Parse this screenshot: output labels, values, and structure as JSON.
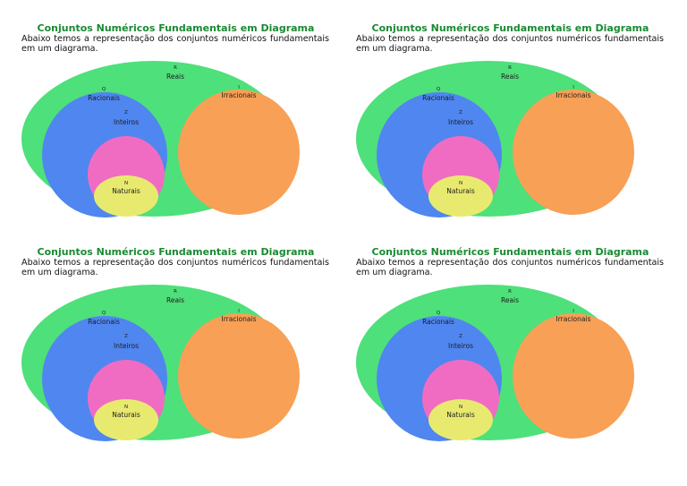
{
  "panels": [
    {
      "title": "Conjuntos Numéricos Fundamentais em Diagrama",
      "description": "Abaixo temos a representação dos conjuntos numéricos fundamentais em um diagrama.",
      "diagram": {
        "reais": {
          "symbol": "R",
          "label": "Reais"
        },
        "irracionais": {
          "symbol": "I",
          "label": "Irracionais"
        },
        "racionais": {
          "symbol": "Q",
          "label": "Racionais"
        },
        "inteiros": {
          "symbol": "Z",
          "label": "Inteiros"
        },
        "naturais": {
          "symbol": "N",
          "label": "Naturais"
        }
      }
    },
    {
      "title": "Conjuntos Numéricos Fundamentais em Diagrama",
      "description": "Abaixo temos a representação dos conjuntos numéricos fundamentais em um diagrama.",
      "diagram": {
        "reais": {
          "symbol": "R",
          "label": "Reais"
        },
        "irracionais": {
          "symbol": "I",
          "label": "Irracionais"
        },
        "racionais": {
          "symbol": "Q",
          "label": "Racionais"
        },
        "inteiros": {
          "symbol": "Z",
          "label": "Inteiros"
        },
        "naturais": {
          "symbol": "N",
          "label": "Naturais"
        }
      }
    },
    {
      "title": "Conjuntos Numéricos Fundamentais em Diagrama",
      "description": "Abaixo temos a representação dos conjuntos numéricos fundamentais em um diagrama.",
      "diagram": {
        "reais": {
          "symbol": "R",
          "label": "Reais"
        },
        "irracionais": {
          "symbol": "I",
          "label": "Irracionais"
        },
        "racionais": {
          "symbol": "Q",
          "label": "Racionais"
        },
        "inteiros": {
          "symbol": "Z",
          "label": "Inteiros"
        },
        "naturais": {
          "symbol": "N",
          "label": "Naturais"
        }
      }
    },
    {
      "title": "Conjuntos Numéricos Fundamentais em Diagrama",
      "description": "Abaixo temos a representação dos conjuntos numéricos fundamentais em um diagrama.",
      "diagram": {
        "reais": {
          "symbol": "R",
          "label": "Reais"
        },
        "irracionais": {
          "symbol": "I",
          "label": "Irracionais"
        },
        "racionais": {
          "symbol": "Q",
          "label": "Racionais"
        },
        "inteiros": {
          "symbol": "Z",
          "label": "Inteiros"
        },
        "naturais": {
          "symbol": "N",
          "label": "Naturais"
        }
      }
    }
  ],
  "colors": {
    "title": "#1a8a32",
    "reais": "#4ee07a",
    "irracionais": "#f7a056",
    "racionais": "#4f86f0",
    "inteiros": "#f06cc2",
    "naturais": "#e8ea70"
  }
}
